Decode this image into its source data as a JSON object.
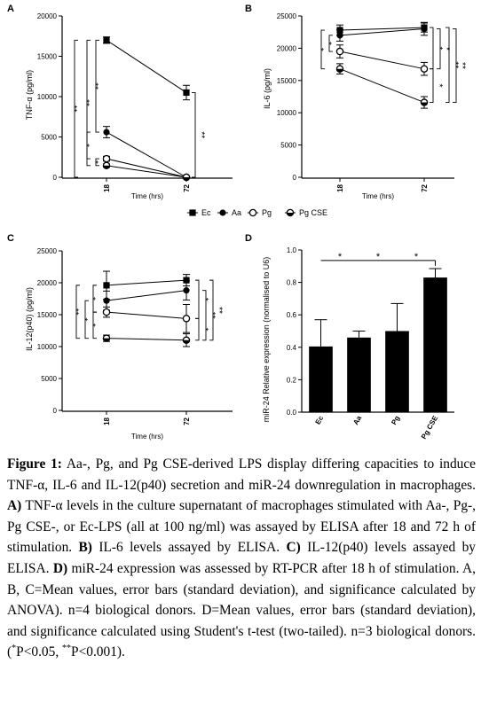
{
  "chart_data": [
    {
      "panel": "A",
      "type": "line",
      "ylabel": "TNF-α (pg/ml)",
      "xlabel": "Time (hrs)",
      "x": [
        "18",
        "72"
      ],
      "ylim": [
        0,
        20000
      ],
      "yticks": [
        "0",
        "5000",
        "10000",
        "15000",
        "20000"
      ],
      "series": [
        {
          "name": "Ec",
          "marker": "square",
          "values": [
            17000,
            10500
          ],
          "err": [
            400,
            900
          ]
        },
        {
          "name": "Aa",
          "marker": "circle",
          "values": [
            5600,
            0
          ],
          "err": [
            700,
            0
          ]
        },
        {
          "name": "Pg",
          "marker": "circle-open",
          "values": [
            2300,
            0
          ],
          "err": [
            300,
            0
          ]
        },
        {
          "name": "Pg CSE",
          "marker": "circle-half",
          "values": [
            1450,
            0
          ],
          "err": [
            200,
            0
          ]
        }
      ],
      "annotations": [
        "**",
        "**",
        "**",
        "*",
        "*",
        "**"
      ]
    },
    {
      "panel": "B",
      "type": "line",
      "ylabel": "IL-6 (pg/ml)",
      "xlabel": "Time (hrs)",
      "x": [
        "18",
        "72"
      ],
      "ylim": [
        0,
        25000
      ],
      "yticks": [
        "0",
        "5000",
        "10000",
        "15000",
        "20000",
        "25000"
      ],
      "series": [
        {
          "name": "Ec",
          "marker": "square",
          "values": [
            22800,
            23200
          ],
          "err": [
            800,
            700
          ]
        },
        {
          "name": "Aa",
          "marker": "circle",
          "values": [
            22000,
            23000
          ],
          "err": [
            900,
            1000
          ]
        },
        {
          "name": "Pg",
          "marker": "circle-open",
          "values": [
            19500,
            16800
          ],
          "err": [
            1000,
            1000
          ]
        },
        {
          "name": "Pg CSE",
          "marker": "circle-half",
          "values": [
            16800,
            11600
          ],
          "err": [
            800,
            900
          ]
        }
      ],
      "annotations": [
        "*",
        "*",
        "*",
        "*",
        "*",
        "**",
        "**"
      ]
    },
    {
      "panel": "C",
      "type": "line",
      "ylabel": "IL-12(p40) (pg/ml)",
      "xlabel": "Time (hrs)",
      "x": [
        "18",
        "72"
      ],
      "ylim": [
        0,
        25000
      ],
      "yticks": [
        "0",
        "5000",
        "10000",
        "15000",
        "20000",
        "25000"
      ],
      "series": [
        {
          "name": "Ec",
          "marker": "square",
          "values": [
            19600,
            20400
          ],
          "err": [
            2200,
            900
          ]
        },
        {
          "name": "Aa",
          "marker": "circle",
          "values": [
            17200,
            18800
          ],
          "err": [
            1500,
            1500
          ]
        },
        {
          "name": "Pg",
          "marker": "circle-open",
          "values": [
            15400,
            14400
          ],
          "err": [
            800,
            2200
          ]
        },
        {
          "name": "Pg CSE",
          "marker": "circle-half",
          "values": [
            11300,
            11000
          ],
          "err": [
            500,
            1000
          ]
        }
      ],
      "annotations": [
        "**",
        "*",
        "*",
        "*",
        "*",
        "**",
        "*",
        "**"
      ]
    },
    {
      "panel": "D",
      "type": "bar",
      "ylabel": "miR-24 Relative expression (normalised to U6)",
      "categories": [
        "Ec",
        "Aa",
        "Pg",
        "Pg CSE"
      ],
      "values": [
        0.405,
        0.46,
        0.5,
        0.83
      ],
      "err": [
        0.165,
        0.04,
        0.17,
        0.055
      ],
      "ylim": [
        0,
        1.0
      ],
      "yticks": [
        "0.0",
        "0.2",
        "0.4",
        "0.6",
        "0.8",
        "1.0"
      ],
      "annotations": [
        "*",
        "*",
        "*"
      ]
    }
  ],
  "legend": {
    "entries": [
      {
        "name": "Ec",
        "marker": "square"
      },
      {
        "name": "Aa",
        "marker": "circle"
      },
      {
        "name": "Pg",
        "marker": "circle-open"
      },
      {
        "name": "Pg CSE",
        "marker": "circle-half"
      }
    ]
  },
  "caption": {
    "label": "Figure 1:",
    "text1": " Aa-, Pg, and Pg CSE-derived LPS display differing capacities to induce TNF-α, IL-6 and IL-12(p40) secretion and miR-24 downregulation in macrophages. ",
    "a_label": "A)",
    "a_text": " TNF-α levels in the culture supernatant of macrophages stimulated with Aa-, Pg-, Pg CSE-, or Ec-LPS (all at 100 ng/ml) was assayed by ELISA after 18 and 72 h of stimulation. ",
    "b_label": "B)",
    "b_text": " IL-6 levels assayed by ELISA. ",
    "c_label": "C)",
    "c_text": " IL-12(p40) levels assayed by ELISA. ",
    "d_label": "D)",
    "d_text": " miR-24 expression was assessed by RT-PCR after 18 h of stimulation. A, B, C=Mean values, error bars (standard deviation), and significance calculated by ANOVA). n=4 biological donors. D=Mean values, error bars (standard deviation), and significance calculated using Student's t-test (two-tailed). n=3 biological donors. (",
    "sig1": "*",
    "sig1_text": "P<0.05, ",
    "sig2": "**",
    "sig2_text": "P<0.001)."
  }
}
